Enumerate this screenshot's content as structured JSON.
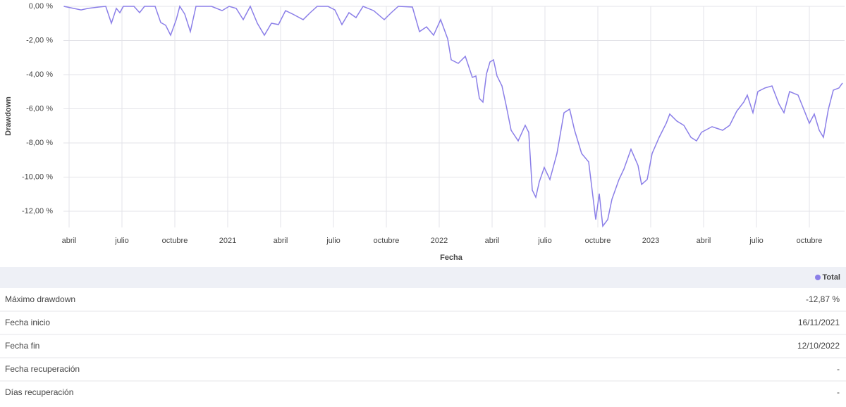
{
  "chart_data": {
    "type": "line",
    "y_label": "Drawdown",
    "x_label": "Fecha",
    "x": [
      -0.3,
      0.68,
      1.08,
      1.68,
      2.08,
      2.4,
      2.68,
      2.88,
      3.08,
      3.68,
      4.0,
      4.28,
      4.88,
      5.2,
      5.48,
      5.76,
      6.08,
      6.28,
      6.56,
      6.88,
      7.2,
      8.08,
      8.68,
      9.08,
      9.48,
      9.88,
      10.28,
      10.68,
      11.08,
      11.48,
      11.88,
      12.28,
      12.68,
      13.28,
      13.68,
      14.08,
      14.68,
      15.08,
      15.48,
      15.88,
      16.28,
      16.68,
      17.28,
      17.88,
      18.28,
      18.68,
      19.48,
      19.88,
      20.28,
      20.68,
      21.08,
      21.48,
      21.68,
      22.08,
      22.48,
      22.88,
      23.08,
      23.28,
      23.48,
      23.68,
      23.88,
      24.08,
      24.28,
      24.56,
      24.8,
      25.08,
      25.48,
      25.88,
      26.08,
      26.28,
      26.48,
      26.68,
      26.96,
      27.28,
      27.68,
      28.08,
      28.4,
      28.68,
      29.08,
      29.48,
      29.88,
      30.08,
      30.28,
      30.56,
      30.8,
      31.2,
      31.48,
      31.88,
      32.28,
      32.48,
      32.8,
      33.08,
      33.48,
      33.88,
      34.08,
      34.48,
      34.88,
      35.28,
      35.6,
      35.88,
      36.48,
      37.08,
      37.48,
      37.88,
      38.28,
      38.48,
      38.8,
      39.08,
      39.48,
      39.88,
      40.28,
      40.56,
      40.88,
      41.36,
      41.68,
      42.0,
      42.28,
      42.56,
      42.8,
      43.08,
      43.36,
      43.68,
      43.88
    ],
    "series": [
      {
        "name": "Total",
        "color": "#8b7fe8",
        "values": [
          0,
          -0.21,
          -0.12,
          -0.04,
          0,
          -0.99,
          -0.12,
          -0.37,
          0,
          0,
          -0.37,
          0,
          0,
          -0.95,
          -1.11,
          -1.69,
          -0.78,
          0,
          -0.45,
          -1.48,
          0,
          0,
          -0.25,
          0,
          -0.12,
          -0.78,
          0,
          -0.99,
          -1.69,
          -0.99,
          -1.07,
          -0.25,
          -0.45,
          -0.78,
          -0.37,
          0,
          0,
          -0.21,
          -1.07,
          -0.37,
          -0.66,
          0,
          -0.25,
          -0.78,
          -0.37,
          0,
          -0.04,
          -1.48,
          -1.2,
          -1.69,
          -0.78,
          -1.9,
          -3.13,
          -3.34,
          -2.93,
          -4.16,
          -4.08,
          -5.4,
          -5.61,
          -3.96,
          -3.26,
          -3.13,
          -4.08,
          -4.66,
          -5.81,
          -7.26,
          -7.88,
          -6.97,
          -7.38,
          -10.76,
          -11.18,
          -10.27,
          -9.44,
          -10.14,
          -8.62,
          -6.23,
          -6.02,
          -7.26,
          -8.62,
          -9.11,
          -12.49,
          -10.97,
          -12.87,
          -12.49,
          -11.3,
          -10.14,
          -9.53,
          -8.37,
          -9.32,
          -10.43,
          -10.14,
          -8.62,
          -7.67,
          -6.85,
          -6.31,
          -6.72,
          -6.97,
          -7.67,
          -7.88,
          -7.38,
          -7.05,
          -7.26,
          -6.97,
          -6.14,
          -5.61,
          -5.2,
          -6.23,
          -4.99,
          -4.78,
          -4.66,
          -5.73,
          -6.23,
          -4.99,
          -5.2,
          -6.02,
          -6.85,
          -6.31,
          -7.26,
          -7.67,
          -6.02,
          -4.91,
          -4.78,
          -4.49
        ]
      }
    ],
    "xlim": [
      -0.32,
      44.0
    ],
    "xticks": [
      {
        "value": 0,
        "label": "abril"
      },
      {
        "value": 3,
        "label": "julio"
      },
      {
        "value": 6,
        "label": "octubre"
      },
      {
        "value": 9,
        "label": "2021"
      },
      {
        "value": 12,
        "label": "abril"
      },
      {
        "value": 15,
        "label": "julio"
      },
      {
        "value": 18,
        "label": "octubre"
      },
      {
        "value": 21,
        "label": "2022"
      },
      {
        "value": 24,
        "label": "abril"
      },
      {
        "value": 27,
        "label": "julio"
      },
      {
        "value": 30,
        "label": "octubre"
      },
      {
        "value": 33,
        "label": "2023"
      },
      {
        "value": 36,
        "label": "abril"
      },
      {
        "value": 39,
        "label": "julio"
      },
      {
        "value": 42,
        "label": "octubre"
      }
    ],
    "ylim": [
      -12.95,
      0
    ],
    "yticks": [
      {
        "value": 0,
        "label": "0,00 %"
      },
      {
        "value": -2,
        "label": "-2,00 %"
      },
      {
        "value": -4,
        "label": "-4,00 %"
      },
      {
        "value": -6,
        "label": "-6,00 %"
      },
      {
        "value": -8,
        "label": "-8,00 %"
      },
      {
        "value": -10,
        "label": "-10,00 %"
      },
      {
        "value": -12,
        "label": "-12,00 %"
      }
    ],
    "grid": true
  },
  "table": {
    "rows": [
      [
        "Máximo drawdown",
        "-12,87 %"
      ],
      [
        "Fecha inicio",
        "16/11/2021"
      ],
      [
        "Fecha fin",
        "12/10/2022"
      ],
      [
        "Fecha recuperación",
        "-"
      ],
      [
        "Días recuperación",
        "-"
      ]
    ]
  }
}
